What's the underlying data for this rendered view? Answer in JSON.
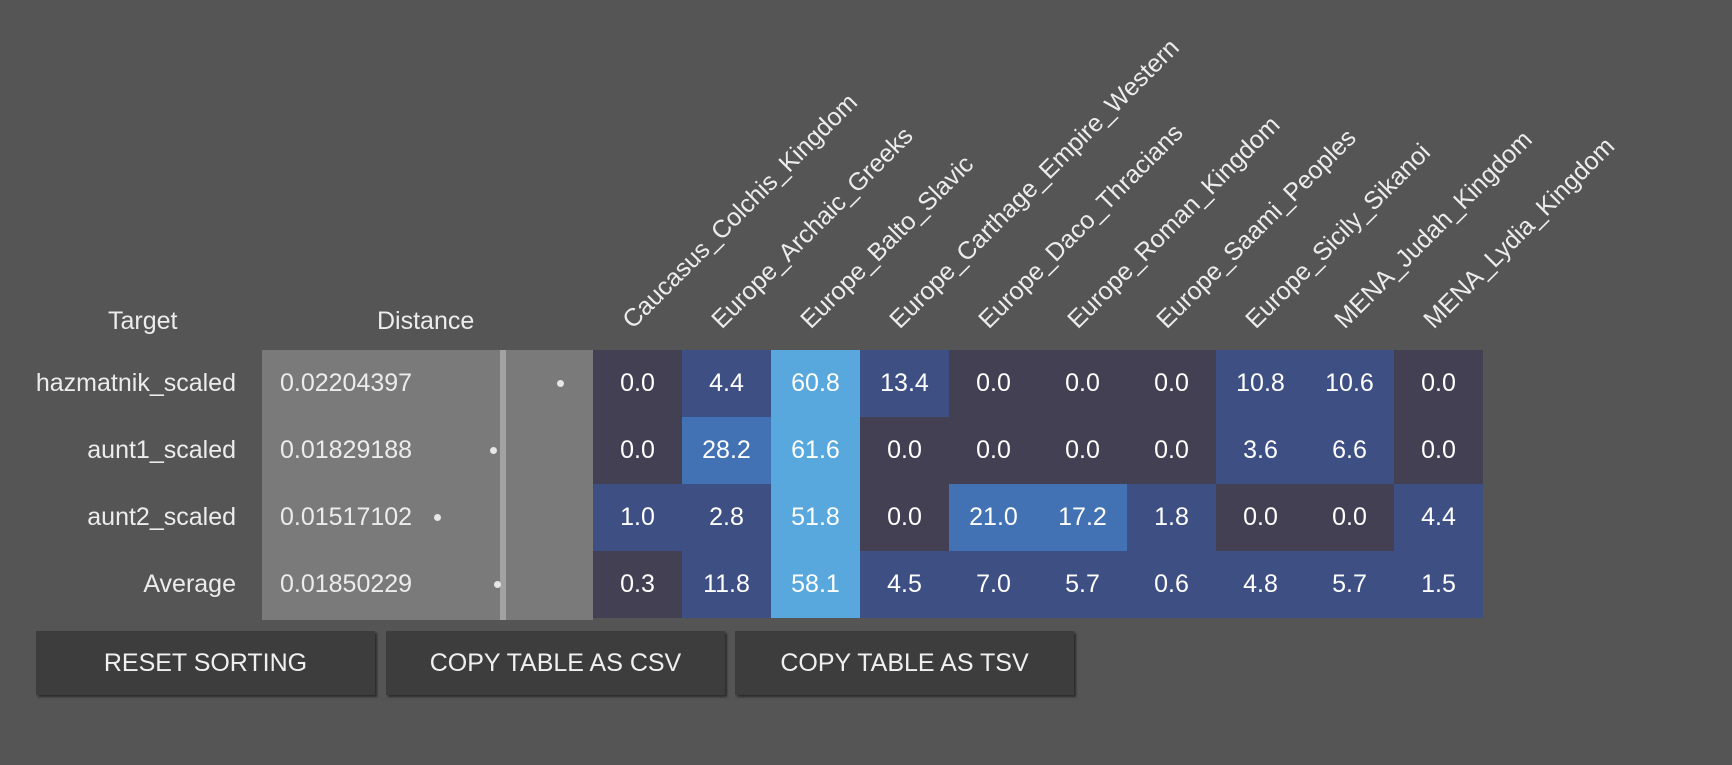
{
  "headers": {
    "target": "Target",
    "distance": "Distance"
  },
  "populations": [
    "Caucasus_Colchis_Kingdom",
    "Europe_Archaic_Greeks",
    "Europe_Balto_Slavic",
    "Europe_Carthage_Empire_Western",
    "Europe_Daco_Thracians",
    "Europe_Roman_Kingdom",
    "Europe_Saami_Peoples",
    "Europe_Sicily_Sikanoi",
    "MENA_Judah_Kingdom",
    "MENA_Lydia_Kingdom"
  ],
  "rows": [
    {
      "target": "hazmatnik_scaled",
      "distance": "0.02204397",
      "distance_value": 0.02204397,
      "values": [
        "0.0",
        "4.4",
        "60.8",
        "13.4",
        "0.0",
        "0.0",
        "0.0",
        "10.8",
        "10.6",
        "0.0"
      ]
    },
    {
      "target": "aunt1_scaled",
      "distance": "0.01829188",
      "distance_value": 0.01829188,
      "values": [
        "0.0",
        "28.2",
        "61.6",
        "0.0",
        "0.0",
        "0.0",
        "0.0",
        "3.6",
        "6.6",
        "0.0"
      ]
    },
    {
      "target": "aunt2_scaled",
      "distance": "0.01517102",
      "distance_value": 0.01517102,
      "values": [
        "1.0",
        "2.8",
        "51.8",
        "0.0",
        "21.0",
        "17.2",
        "1.8",
        "0.0",
        "0.0",
        "4.4"
      ]
    },
    {
      "target": "Average",
      "distance": "0.01850229",
      "distance_value": 0.01850229,
      "values": [
        "0.3",
        "11.8",
        "58.1",
        "4.5",
        "7.0",
        "5.7",
        "0.6",
        "4.8",
        "5.7",
        "1.5"
      ]
    }
  ],
  "buttons": {
    "reset": "RESET SORTING",
    "copy_csv": "COPY TABLE AS CSV",
    "copy_tsv": "COPY TABLE AS TSV"
  },
  "colors": {
    "page_background": "#555555",
    "distance_background": "#7a7a7a",
    "average_line": "#a2a2a2",
    "heat_zero": "#424052",
    "heat_low": "#3e4f84",
    "heat_mid": "#4272b4",
    "heat_high": "#58a8de",
    "button_background": "#3d3d3d"
  }
}
